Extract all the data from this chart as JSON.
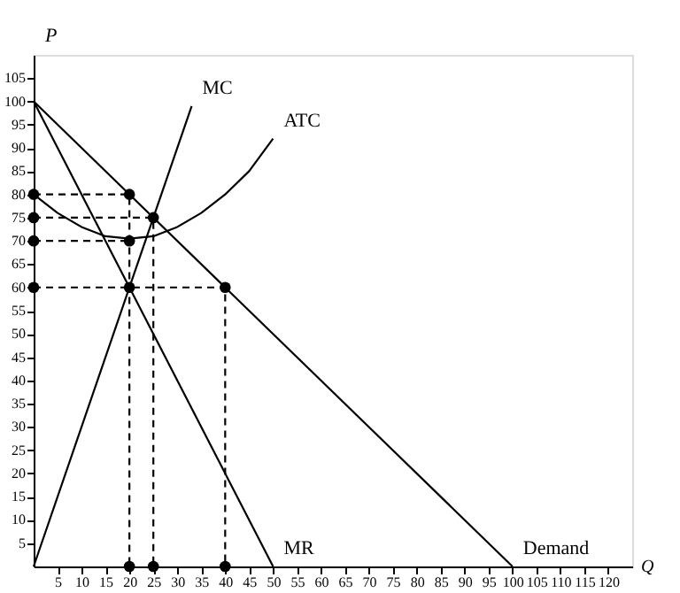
{
  "chart_data": {
    "type": "line",
    "xlabel": "Q",
    "ylabel": "P",
    "xlim": [
      0,
      125
    ],
    "ylim": [
      0,
      110
    ],
    "xticks": [
      5,
      10,
      15,
      20,
      25,
      30,
      35,
      40,
      45,
      50,
      55,
      60,
      65,
      70,
      75,
      80,
      85,
      90,
      95,
      100,
      105,
      110,
      115,
      120
    ],
    "yticks": [
      5,
      10,
      15,
      20,
      25,
      30,
      35,
      40,
      45,
      50,
      55,
      60,
      65,
      70,
      75,
      80,
      85,
      90,
      95,
      100,
      105
    ],
    "grid": false,
    "series": [
      {
        "name": "Demand",
        "color": "#000000",
        "line_style": "solid",
        "x": [
          0,
          100
        ],
        "values": [
          100,
          0
        ]
      },
      {
        "name": "MR",
        "color": "#000000",
        "line_style": "solid",
        "x": [
          0,
          50
        ],
        "values": [
          100,
          0
        ]
      },
      {
        "name": "MC",
        "color": "#000000",
        "line_style": "solid",
        "x": [
          0,
          33
        ],
        "values": [
          0,
          99
        ]
      },
      {
        "name": "ATC",
        "color": "#000000",
        "line_style": "solid",
        "x": [
          0,
          5,
          10,
          15,
          20,
          25,
          30,
          35,
          40,
          45,
          50
        ],
        "values": [
          80,
          76,
          73,
          71,
          70.5,
          71,
          73,
          76,
          80,
          85,
          92
        ]
      },
      {
        "color": "#000000",
        "line_style": "dashed",
        "x": [
          0,
          20,
          20
        ],
        "values": [
          80,
          80,
          0
        ]
      },
      {
        "color": "#000000",
        "line_style": "dashed",
        "x": [
          0,
          25,
          25
        ],
        "values": [
          75,
          75,
          0
        ]
      },
      {
        "color": "#000000",
        "line_style": "dashed",
        "x": [
          0,
          20
        ],
        "values": [
          70,
          70
        ]
      },
      {
        "color": "#000000",
        "line_style": "dashed",
        "x": [
          0,
          40,
          40
        ],
        "values": [
          60,
          60,
          0
        ]
      },
      {
        "type": "scatter",
        "marker": "circle",
        "color": "#000000",
        "x": [
          0,
          0,
          0,
          0,
          20,
          25,
          20,
          20,
          40,
          20,
          25,
          40
        ],
        "values": [
          80,
          75,
          70,
          60,
          80,
          75,
          70,
          60,
          60,
          0,
          0,
          0
        ]
      }
    ]
  }
}
